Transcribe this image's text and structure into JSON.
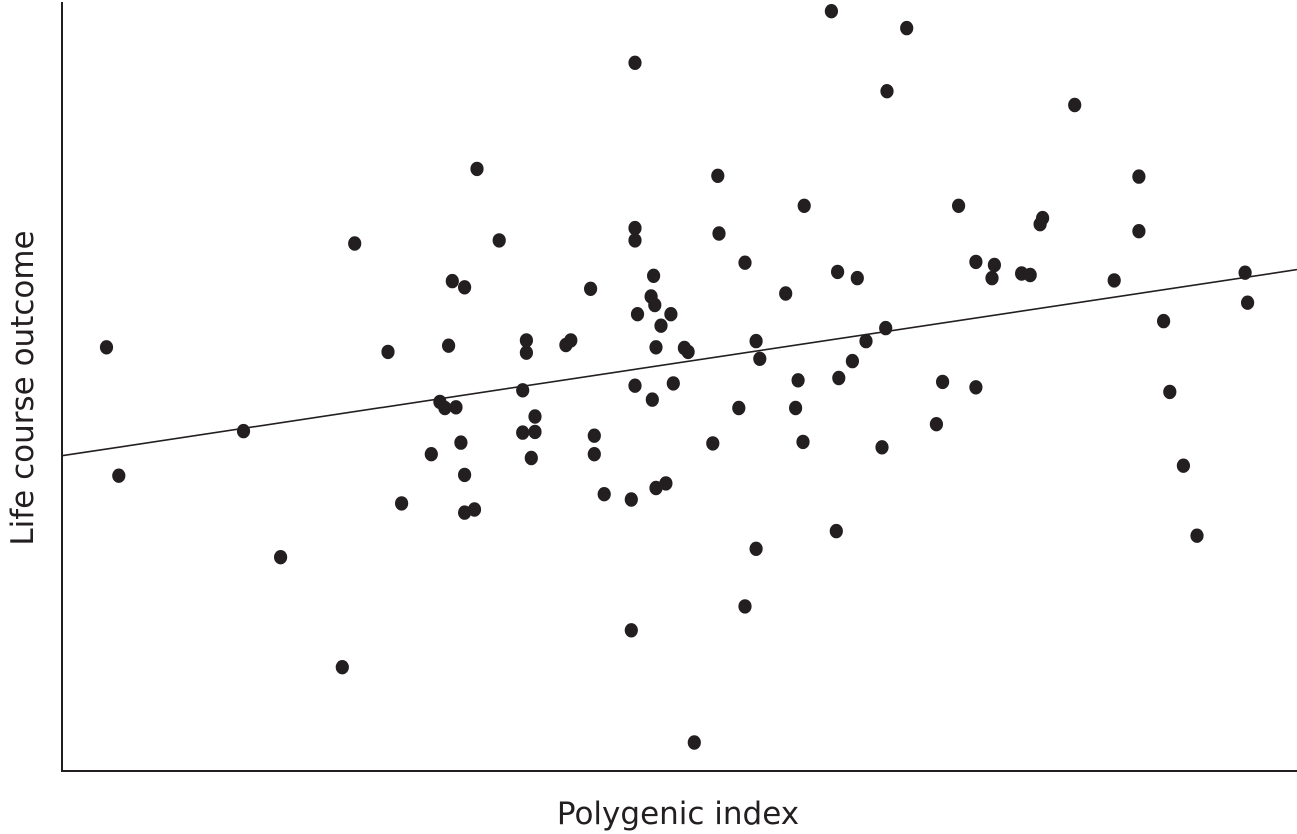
{
  "colors": {
    "ink": "#231f20",
    "background": "#ffffff"
  },
  "chart_data": {
    "type": "scatter",
    "title": "",
    "xlabel": "Polygenic index",
    "ylabel": "Life course outcome",
    "xlim": [
      0,
      100
    ],
    "ylim": [
      0,
      100
    ],
    "grid": false,
    "legend": "none",
    "show_tick_labels": false,
    "trendline": {
      "x": [
        0,
        100
      ],
      "y": [
        41.0,
        65.2
      ]
    },
    "series": [
      {
        "points": [
          [
            3.6,
            55.1
          ],
          [
            4.6,
            38.4
          ],
          [
            14.7,
            44.2
          ],
          [
            17.7,
            27.8
          ],
          [
            22.7,
            13.5
          ],
          [
            23.7,
            68.6
          ],
          [
            26.4,
            54.5
          ],
          [
            27.5,
            34.8
          ],
          [
            29.9,
            41.2
          ],
          [
            30.6,
            48.0
          ],
          [
            31.0,
            47.2
          ],
          [
            31.3,
            55.3
          ],
          [
            31.6,
            63.7
          ],
          [
            31.9,
            47.3
          ],
          [
            32.3,
            42.7
          ],
          [
            32.6,
            62.9
          ],
          [
            32.6,
            38.5
          ],
          [
            32.6,
            33.6
          ],
          [
            33.4,
            34.0
          ],
          [
            33.6,
            78.3
          ],
          [
            35.4,
            69.0
          ],
          [
            37.3,
            49.5
          ],
          [
            37.3,
            44.0
          ],
          [
            37.6,
            56.0
          ],
          [
            37.6,
            54.4
          ],
          [
            38.0,
            40.7
          ],
          [
            38.3,
            46.1
          ],
          [
            38.3,
            44.1
          ],
          [
            40.8,
            55.4
          ],
          [
            41.2,
            56.0
          ],
          [
            42.8,
            62.7
          ],
          [
            43.1,
            41.2
          ],
          [
            43.1,
            43.6
          ],
          [
            43.9,
            36.0
          ],
          [
            46.1,
            18.3
          ],
          [
            46.1,
            35.3
          ],
          [
            46.4,
            92.1
          ],
          [
            46.4,
            50.1
          ],
          [
            46.4,
            69.0
          ],
          [
            46.4,
            70.6
          ],
          [
            46.6,
            59.4
          ],
          [
            47.7,
            61.7
          ],
          [
            47.8,
            48.3
          ],
          [
            47.9,
            64.4
          ],
          [
            48.0,
            60.6
          ],
          [
            48.1,
            55.1
          ],
          [
            48.1,
            36.8
          ],
          [
            48.5,
            57.9
          ],
          [
            48.9,
            37.4
          ],
          [
            49.3,
            59.4
          ],
          [
            49.5,
            50.4
          ],
          [
            50.4,
            55.0
          ],
          [
            50.7,
            54.5
          ],
          [
            51.2,
            3.7
          ],
          [
            52.7,
            42.6
          ],
          [
            53.1,
            77.4
          ],
          [
            53.2,
            69.9
          ],
          [
            54.8,
            47.2
          ],
          [
            55.3,
            21.4
          ],
          [
            55.3,
            66.1
          ],
          [
            56.2,
            28.9
          ],
          [
            56.2,
            55.9
          ],
          [
            56.5,
            53.6
          ],
          [
            58.6,
            62.1
          ],
          [
            59.4,
            47.2
          ],
          [
            59.6,
            50.8
          ],
          [
            60.0,
            42.8
          ],
          [
            60.1,
            73.5
          ],
          [
            62.3,
            98.8
          ],
          [
            62.7,
            31.2
          ],
          [
            62.8,
            64.9
          ],
          [
            62.9,
            51.1
          ],
          [
            64.0,
            53.3
          ],
          [
            64.4,
            64.1
          ],
          [
            65.1,
            55.9
          ],
          [
            66.4,
            42.1
          ],
          [
            66.7,
            57.6
          ],
          [
            66.8,
            88.4
          ],
          [
            68.4,
            96.6
          ],
          [
            70.8,
            45.1
          ],
          [
            71.3,
            50.6
          ],
          [
            72.6,
            73.5
          ],
          [
            74.0,
            49.9
          ],
          [
            74.0,
            66.2
          ],
          [
            75.3,
            64.1
          ],
          [
            75.5,
            65.8
          ],
          [
            77.7,
            64.7
          ],
          [
            78.4,
            64.5
          ],
          [
            79.2,
            71.1
          ],
          [
            79.4,
            71.9
          ],
          [
            82.0,
            86.6
          ],
          [
            85.2,
            63.8
          ],
          [
            87.2,
            77.3
          ],
          [
            87.2,
            70.2
          ],
          [
            89.2,
            58.5
          ],
          [
            89.7,
            49.3
          ],
          [
            90.8,
            39.7
          ],
          [
            91.9,
            30.6
          ],
          [
            95.8,
            64.8
          ],
          [
            96.0,
            60.9
          ]
        ]
      }
    ]
  }
}
